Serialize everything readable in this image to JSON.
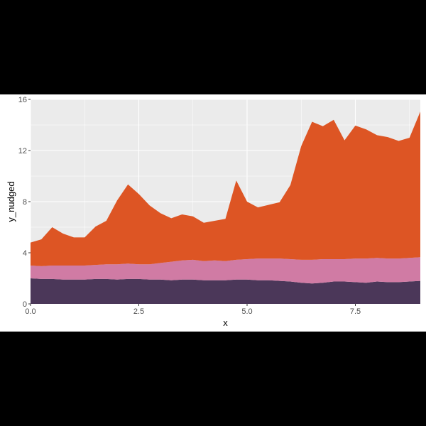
{
  "chart_data": {
    "type": "area",
    "stacked": true,
    "xlabel": "x",
    "ylabel": "y_nudged",
    "xlim": [
      0,
      9
    ],
    "ylim": [
      0,
      16
    ],
    "x_ticks": [
      0,
      2.5,
      5,
      7.5
    ],
    "x_tick_labels": [
      "0.0",
      "2.5",
      "5.0",
      "7.5"
    ],
    "y_ticks": [
      0,
      4,
      8,
      12,
      16
    ],
    "y_tick_labels": [
      "0",
      "4",
      "8",
      "12",
      "16"
    ],
    "grid": true,
    "legend": "none",
    "background": "#ebebeb",
    "gridline_color": "#ffffff",
    "x": [
      0,
      0.25,
      0.5,
      0.75,
      1,
      1.25,
      1.5,
      1.75,
      2,
      2.25,
      2.5,
      2.75,
      3,
      3.25,
      3.5,
      3.75,
      4,
      4.25,
      4.5,
      4.75,
      5,
      5.25,
      5.5,
      5.75,
      6,
      6.25,
      6.5,
      6.75,
      7,
      7.25,
      7.5,
      7.75,
      8,
      8.25,
      8.5,
      8.75,
      9
    ],
    "series": [
      {
        "color": "#4b3759",
        "values": [
          2.0,
          1.95,
          1.95,
          1.9,
          1.9,
          1.9,
          1.95,
          1.95,
          1.9,
          1.95,
          1.95,
          1.9,
          1.9,
          1.85,
          1.9,
          1.9,
          1.85,
          1.85,
          1.85,
          1.9,
          1.9,
          1.85,
          1.85,
          1.8,
          1.75,
          1.65,
          1.6,
          1.65,
          1.75,
          1.75,
          1.7,
          1.65,
          1.75,
          1.7,
          1.7,
          1.75,
          1.8
        ]
      },
      {
        "color": "#d07ba4",
        "values": [
          1.0,
          1.0,
          1.05,
          1.1,
          1.1,
          1.1,
          1.1,
          1.15,
          1.2,
          1.2,
          1.15,
          1.2,
          1.3,
          1.45,
          1.5,
          1.55,
          1.5,
          1.55,
          1.5,
          1.55,
          1.6,
          1.7,
          1.7,
          1.75,
          1.75,
          1.8,
          1.85,
          1.85,
          1.75,
          1.75,
          1.85,
          1.9,
          1.85,
          1.85,
          1.85,
          1.85,
          1.85
        ]
      },
      {
        "color": "#dd5524",
        "values": [
          1.8,
          2.1,
          3.0,
          2.5,
          2.2,
          2.2,
          3.0,
          3.4,
          5.0,
          6.2,
          5.5,
          4.6,
          3.9,
          3.4,
          3.6,
          3.4,
          3.0,
          3.1,
          3.3,
          6.2,
          4.5,
          4.0,
          4.2,
          4.4,
          5.8,
          8.9,
          10.8,
          10.4,
          10.9,
          9.3,
          10.4,
          10.1,
          9.6,
          9.5,
          9.2,
          9.4,
          11.4
        ]
      }
    ]
  }
}
